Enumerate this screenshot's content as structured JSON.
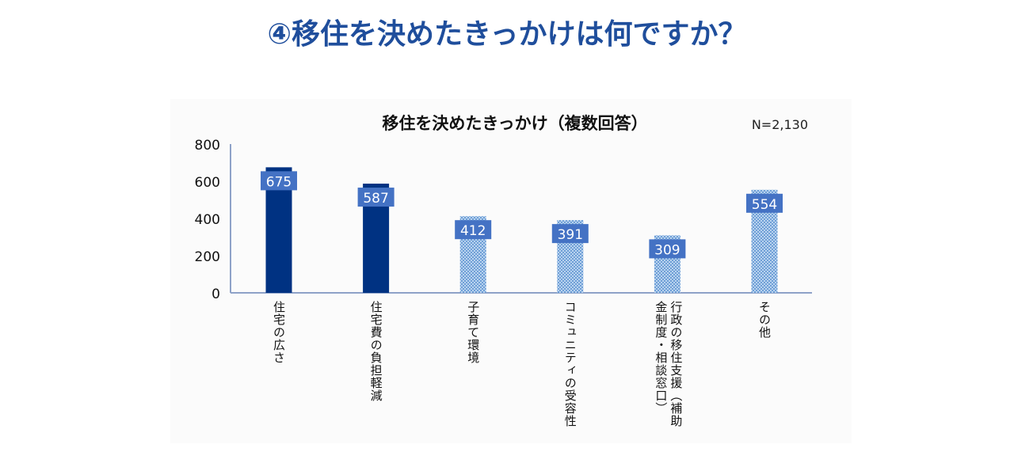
{
  "page_title": "④移住を決めたきっかけは何ですか？",
  "chart_data": {
    "type": "bar",
    "title": "移住を決めたきっかけ（複数回答）",
    "note": "N=2,130",
    "categories": [
      "住宅の広さ",
      "住宅費の負担軽減",
      "子育て環境",
      "コミュニティの受容性",
      "行政の移住支援（補助金制度・相談窓口）",
      "その他"
    ],
    "category_lines": [
      [
        "住宅の広さ"
      ],
      [
        "住宅費の負担軽減"
      ],
      [
        "子育て環境"
      ],
      [
        "コミュニティの受容性"
      ],
      [
        "行政の移住支援（補助",
        "金制度・相談窓口）"
      ],
      [
        "その他"
      ]
    ],
    "values": [
      675,
      587,
      412,
      391,
      309,
      554
    ],
    "bar_styles": [
      "solid",
      "solid",
      "pattern",
      "pattern",
      "pattern",
      "pattern"
    ],
    "ylim": [
      0,
      800
    ],
    "yticks": [
      "0",
      "200",
      "400",
      "600",
      "800"
    ],
    "data_labels": [
      "675",
      "587",
      "412",
      "391",
      "309",
      "554"
    ],
    "grid": false,
    "colors": {
      "solid": "#003282",
      "pattern": "#8fb8e3",
      "label_bg": "#4472c4",
      "axis": "#8ea2c8"
    }
  }
}
